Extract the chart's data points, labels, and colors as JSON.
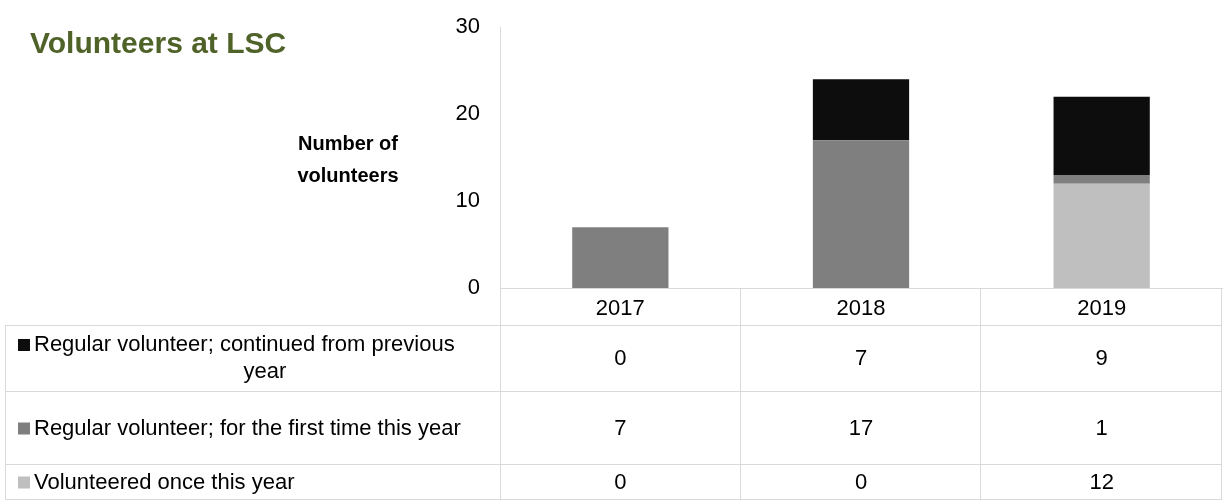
{
  "chart_data": {
    "type": "bar",
    "title": "Volunteers at LSC",
    "ylabel": "Number of volunteers",
    "categories": [
      "2017",
      "2018",
      "2019"
    ],
    "stacked": true,
    "data_labels": true,
    "legend": "bottom left",
    "grid": false,
    "ylim": [
      0,
      30
    ],
    "yticks": [
      0,
      10,
      20,
      30
    ],
    "series": [
      {
        "name": "Volunteered once this year",
        "color": "#bfbfbf",
        "values": [
          0,
          0,
          12
        ]
      },
      {
        "name": "Regular volunteer; for the first time this year",
        "color": "#7f7f7f",
        "values": [
          7,
          17,
          1
        ]
      },
      {
        "name": "Regular volunteer; continued from previous year",
        "color": "#0d0d0d",
        "values": [
          0,
          7,
          9
        ]
      }
    ]
  }
}
